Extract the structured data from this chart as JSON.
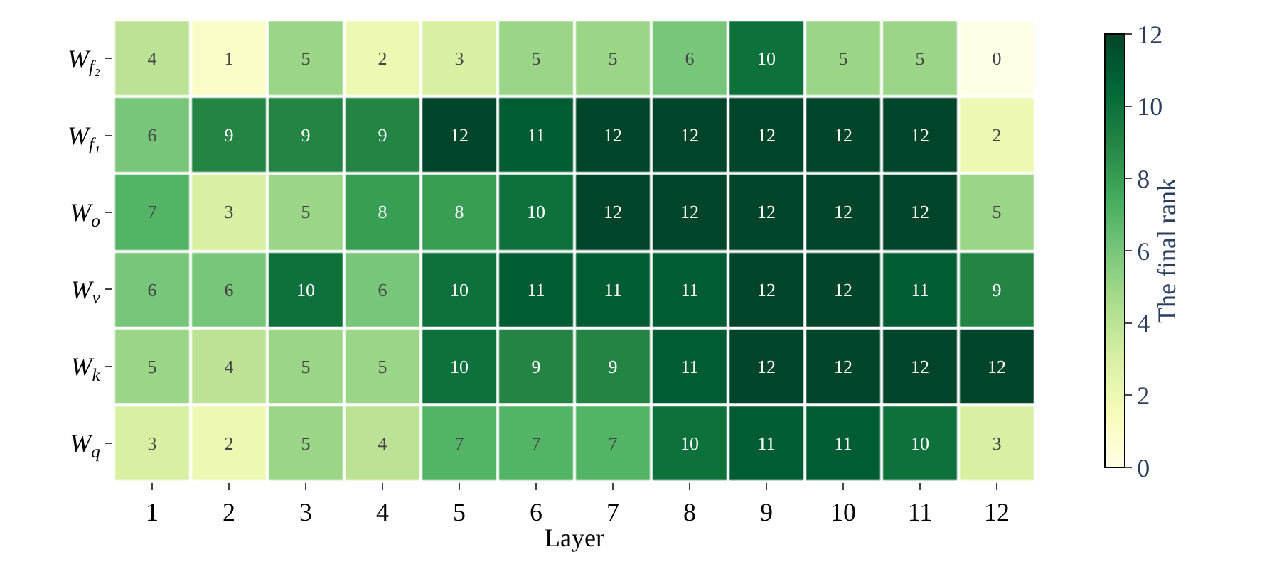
{
  "chart_data": {
    "type": "heatmap",
    "xlabel": "Layer",
    "clabel": "The final rank",
    "categories": [
      "1",
      "2",
      "3",
      "4",
      "5",
      "6",
      "7",
      "8",
      "9",
      "10",
      "11",
      "12"
    ],
    "y_categories": [
      "W$_{f₂}$",
      "W$_{f₁}$",
      "W$_{o}$",
      "W$_{v}$",
      "W$_{k}$",
      "W$_{q}$"
    ],
    "cells": [
      [
        4,
        1,
        5,
        2,
        3,
        5,
        5,
        6,
        10,
        5,
        5,
        0
      ],
      [
        6,
        9,
        9,
        9,
        12,
        11,
        12,
        12,
        12,
        12,
        12,
        2
      ],
      [
        7,
        3,
        5,
        8,
        8,
        10,
        12,
        12,
        12,
        12,
        12,
        5
      ],
      [
        6,
        6,
        10,
        6,
        10,
        11,
        11,
        11,
        12,
        12,
        11,
        9
      ],
      [
        5,
        4,
        5,
        5,
        10,
        9,
        9,
        11,
        12,
        12,
        12,
        12
      ],
      [
        3,
        2,
        5,
        4,
        7,
        7,
        7,
        10,
        11,
        11,
        10,
        3
      ]
    ],
    "clim": [
      0,
      12
    ],
    "cticks": [
      0,
      2,
      4,
      6,
      8,
      10,
      12
    ],
    "data_labels": true
  }
}
